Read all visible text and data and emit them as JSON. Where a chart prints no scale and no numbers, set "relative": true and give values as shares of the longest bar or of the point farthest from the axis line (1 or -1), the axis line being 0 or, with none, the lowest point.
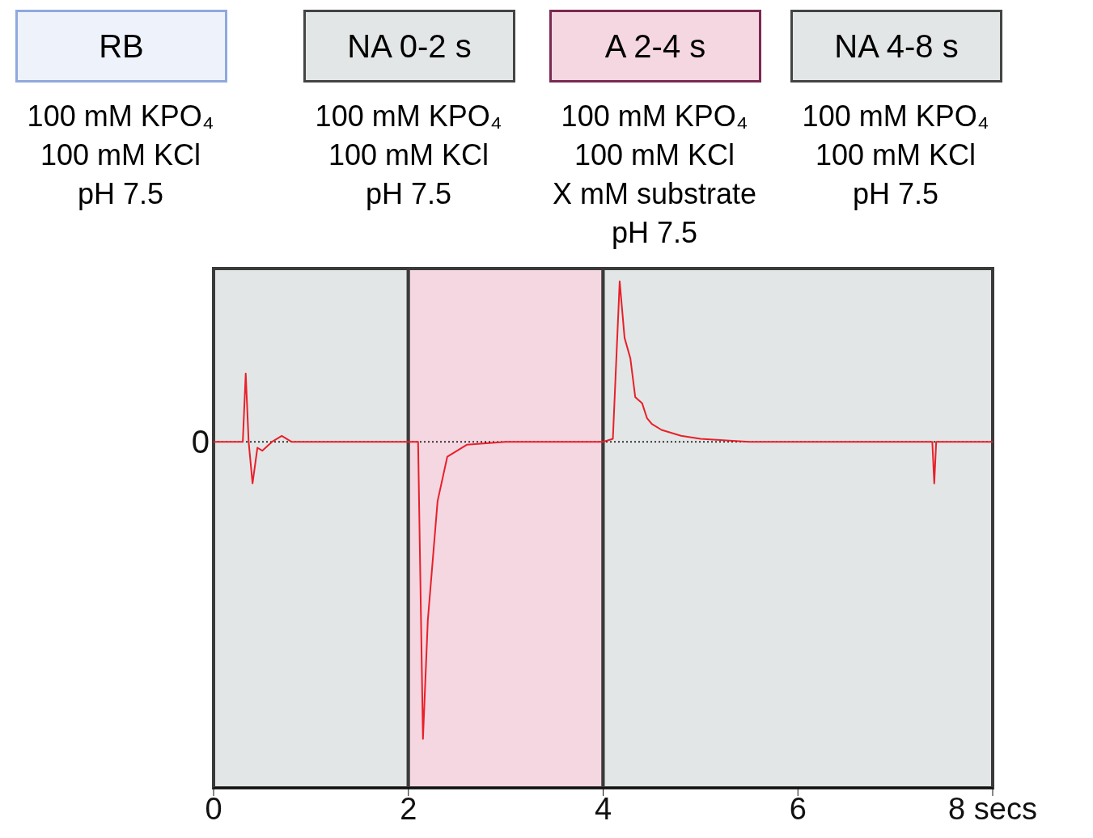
{
  "chart_data": {
    "type": "line",
    "relative": true,
    "series": [
      {
        "color": "#e8202a",
        "x": [
          0,
          0.3,
          0.33,
          0.36,
          0.4,
          0.45,
          0.5,
          0.6,
          0.7,
          0.8,
          2.1,
          2.15,
          2.2,
          2.3,
          2.4,
          2.6,
          3.0,
          4.0,
          4.1,
          4.17,
          4.22,
          4.28,
          4.33,
          4.4,
          4.45,
          4.5,
          4.6,
          4.8,
          5.0,
          5.5,
          7.38,
          7.4,
          7.42,
          8
        ],
        "values": [
          0,
          0,
          0.23,
          0,
          -0.14,
          -0.02,
          -0.03,
          0,
          0.02,
          0,
          0,
          -1,
          -0.6,
          -0.2,
          -0.05,
          -0.01,
          0,
          0,
          0.01,
          0.54,
          0.35,
          0.28,
          0.15,
          0.13,
          0.08,
          0.06,
          0.04,
          0.02,
          0.01,
          0,
          0,
          -0.14,
          0,
          0
        ]
      }
    ],
    "xlim": [
      0,
      8
    ],
    "xticks": [
      0,
      2,
      4,
      6,
      {
        "value": 8,
        "label": "8 secs"
      }
    ],
    "marker": "none",
    "line_style": "solid",
    "ref_lines": [
      {
        "axis": "y",
        "value": 0,
        "label": "0",
        "color": "#000000",
        "line_style": "dotted"
      }
    ],
    "bands": [
      {
        "axis": "x",
        "from": 0,
        "to": 2,
        "color": "#e3e6e6"
      },
      {
        "axis": "x",
        "from": 2,
        "to": 4,
        "color": "#f4d7e1"
      },
      {
        "axis": "x",
        "from": 4,
        "to": 8,
        "color": "#e3e6e6"
      }
    ],
    "annotations": [
      "RB",
      "NA 0-2 s",
      "A 2-4 s",
      "NA 4-8 s",
      "100 mM KPO₄\n100 mM KCl\npH 7.5",
      "100 mM KPO₄\n100 mM KCl\npH 7.5",
      "100 mM KPO₄\n100 mM KCl\nX mM substrate\npH 7.5",
      "100 mM KPO₄\n100 mM KCl\npH 7.5"
    ]
  }
}
